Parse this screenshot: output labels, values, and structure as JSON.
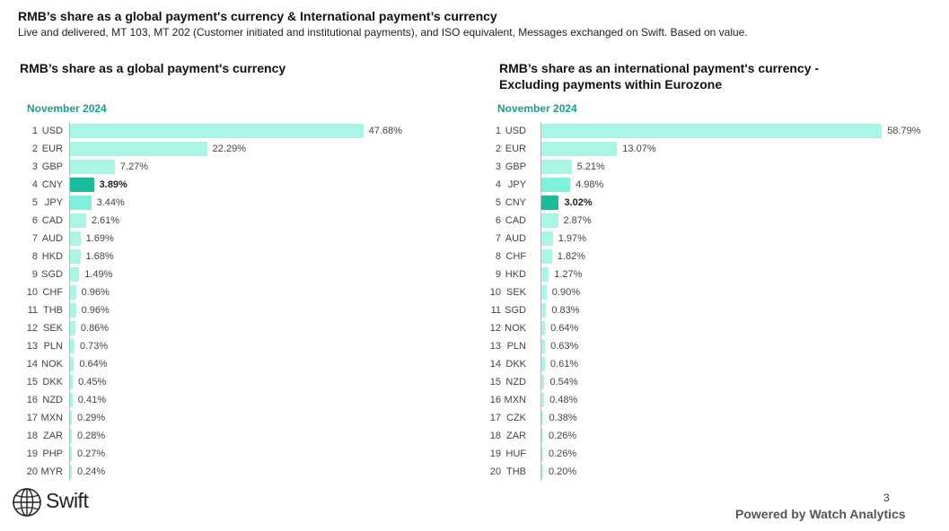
{
  "header": {
    "title": "RMB’s share as a global payment's currency & International payment’s currency",
    "subtitle": "Live and delivered, MT 103, MT 202 (Customer initiated and institutional payments), and ISO equivalent, Messages exchanged on Swift. Based on value."
  },
  "colors": {
    "bar": "#aaf5e6",
    "bar_mid": "#7ff0dc",
    "highlight": "#1abc9c",
    "period_label": "#1a9e8c"
  },
  "chart_data": [
    {
      "type": "bar",
      "orientation": "horizontal",
      "title_lines": [
        "RMB’s share as a global payment's currency"
      ],
      "period": "November 2024",
      "highlight": "CNY",
      "ranks": [
        "1",
        "2",
        "3",
        "4",
        "5",
        "6",
        "7",
        "8",
        "9",
        "10",
        "11",
        "12",
        "13",
        "14",
        "15",
        "16",
        "17",
        "18",
        "19",
        "20"
      ],
      "categories": [
        "USD",
        "EUR",
        "GBP",
        "CNY",
        "JPY",
        "CAD",
        "AUD",
        "HKD",
        "SGD",
        "CHF",
        "THB",
        "SEK",
        "PLN",
        "NOK",
        "DKK",
        "NZD",
        "MXN",
        "ZAR",
        "PHP",
        "MYR"
      ],
      "values": [
        47.68,
        22.29,
        7.27,
        3.89,
        3.44,
        2.61,
        1.69,
        1.68,
        1.49,
        0.96,
        0.96,
        0.86,
        0.73,
        0.64,
        0.45,
        0.41,
        0.29,
        0.28,
        0.27,
        0.24
      ],
      "value_labels": [
        "47.68%",
        "22.29%",
        "7.27%",
        "3.89%",
        "3.44%",
        "2.61%",
        "1.69%",
        "1.68%",
        "1.49%",
        "0.96%",
        "0.96%",
        "0.86%",
        "0.73%",
        "0.64%",
        "0.45%",
        "0.41%",
        "0.29%",
        "0.28%",
        "0.27%",
        "0.24%"
      ],
      "unit": "%"
    },
    {
      "type": "bar",
      "orientation": "horizontal",
      "title_lines": [
        "RMB’s share as an international payment's currency -",
        "Excluding payments within Eurozone"
      ],
      "period": "November 2024",
      "highlight": "CNY",
      "ranks": [
        "1",
        "2",
        "3",
        "4",
        "5",
        "6",
        "7",
        "8",
        "9",
        "10",
        "11",
        "12",
        "13",
        "14",
        "15",
        "16",
        "17",
        "18",
        "19",
        "20"
      ],
      "categories": [
        "USD",
        "EUR",
        "GBP",
        "JPY",
        "CNY",
        "CAD",
        "AUD",
        "CHF",
        "HKD",
        "SEK",
        "SGD",
        "NOK",
        "PLN",
        "DKK",
        "NZD",
        "MXN",
        "CZK",
        "ZAR",
        "HUF",
        "THB"
      ],
      "values": [
        58.79,
        13.07,
        5.21,
        4.98,
        3.02,
        2.87,
        1.97,
        1.82,
        1.27,
        0.9,
        0.83,
        0.64,
        0.63,
        0.61,
        0.54,
        0.48,
        0.38,
        0.26,
        0.26,
        0.2
      ],
      "value_labels": [
        "58.79%",
        "13.07%",
        "5.21%",
        "4.98%",
        "3.02%",
        "2.87%",
        "1.97%",
        "1.82%",
        "1.27%",
        "0.90%",
        "0.83%",
        "0.64%",
        "0.63%",
        "0.61%",
        "0.54%",
        "0.48%",
        "0.38%",
        "0.26%",
        "0.26%",
        "0.20%"
      ],
      "unit": "%"
    }
  ],
  "footer": {
    "logo_text": "Swift",
    "logo_icon": "globe-icon",
    "page_number": "3",
    "powered_by": "Powered by Watch Analytics"
  }
}
